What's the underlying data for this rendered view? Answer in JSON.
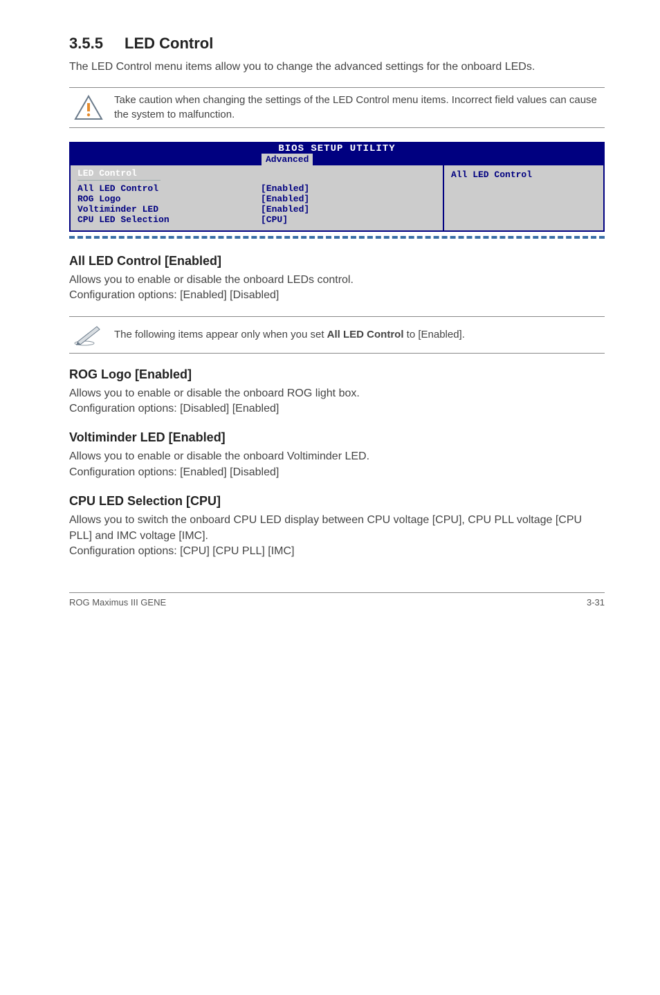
{
  "section": {
    "number": "3.5.5",
    "title": "LED Control",
    "intro": "The LED Control menu items allow you to change the advanced settings for the onboard LEDs."
  },
  "caution": {
    "text": "Take caution when changing the settings of the LED Control menu items. Incorrect field values can cause the system to malfunction.",
    "icon_stroke": "#6a7a8a",
    "icon_dot": "#e58b2c"
  },
  "bios": {
    "title": "BIOS SETUP UTILITY",
    "tab": "Advanced",
    "panel_title": "LED Control",
    "help_text": "All LED Control",
    "colors": {
      "frame": "#000080",
      "panel_bg": "#cccccc",
      "text": "#000080",
      "title_text": "#ffffff",
      "dashed": "#3a6ea5"
    },
    "rows": [
      {
        "label": "All LED Control",
        "value": "[Enabled]"
      },
      {
        "label": "ROG Logo",
        "value": "[Enabled]"
      },
      {
        "label": "Voltiminder LED",
        "value": "[Enabled]"
      },
      {
        "label": "CPU LED Selection",
        "value": "[CPU]"
      }
    ]
  },
  "subsections": [
    {
      "heading": "All LED Control [Enabled]",
      "body": "Allows you to enable or disable the onboard LEDs control.\nConfiguration options: [Enabled] [Disabled]"
    }
  ],
  "info_note": {
    "text_prefix": "The following items appear only when you set ",
    "text_bold": "All LED Control",
    "text_suffix": " to [Enabled]."
  },
  "subsections2": [
    {
      "heading": "ROG Logo [Enabled]",
      "body": "Allows you to enable or disable the onboard ROG light box.\nConfiguration options: [Disabled] [Enabled]"
    },
    {
      "heading": "Voltiminder LED [Enabled]",
      "body": "Allows you to enable or disable the onboard Voltiminder LED.\nConfiguration options: [Enabled] [Disabled]"
    },
    {
      "heading": "CPU LED Selection [CPU]",
      "body": "Allows you to switch the onboard CPU LED display between CPU voltage [CPU], CPU PLL voltage [CPU PLL] and IMC voltage [IMC].\nConfiguration options: [CPU] [CPU PLL] [IMC]"
    }
  ],
  "footer": {
    "left": "ROG Maximus III GENE",
    "right": "3-31"
  }
}
